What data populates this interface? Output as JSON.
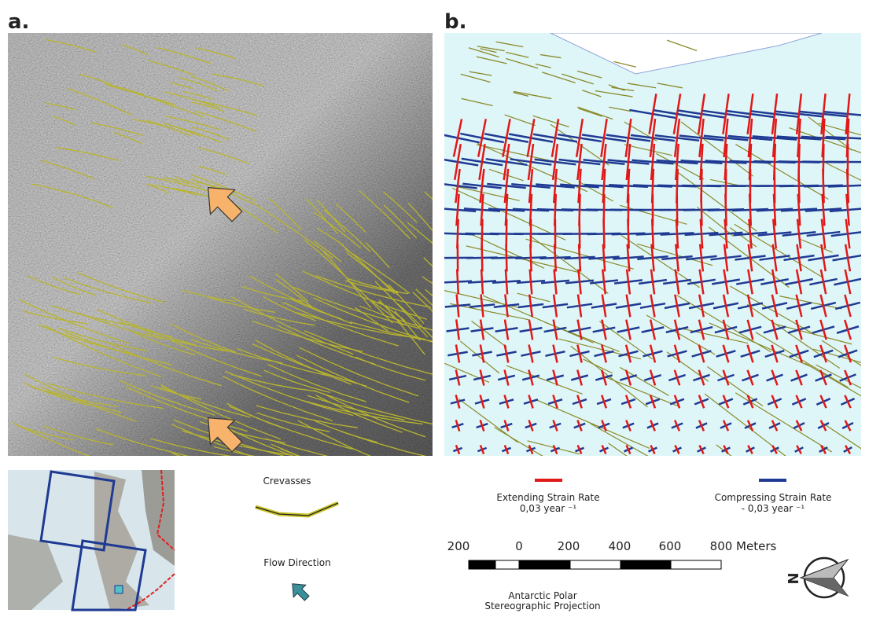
{
  "panels": {
    "a": {
      "label": "a."
    },
    "b": {
      "label": "b."
    }
  },
  "legend": {
    "crevasses": "Crevasses",
    "flow_direction": "Flow Direction",
    "extending": {
      "title": "Extending Strain Rate",
      "rate": "0,03  year ⁻¹"
    },
    "compressing": {
      "title": "Compressing Strain Rate",
      "rate": "- 0,03  year ⁻¹"
    }
  },
  "scale_bar": {
    "labels": [
      "200",
      "0",
      "200",
      "400",
      "600",
      "800 Meters"
    ]
  },
  "projection": [
    "Antarctic Polar",
    "Stereographic Projection"
  ],
  "north_arrow": "N"
}
